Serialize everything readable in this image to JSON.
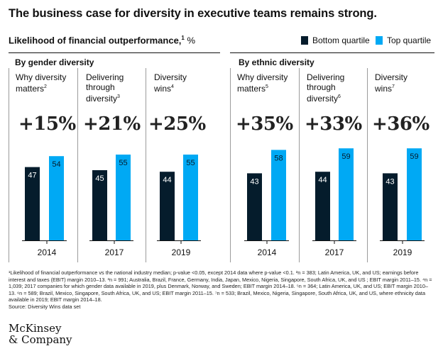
{
  "title": "The business case for diversity in executive teams remains strong.",
  "subtitle": {
    "text": "Likelihood of financial outperformance,",
    "sup": "1",
    "unit": "%"
  },
  "legend": [
    {
      "label": "Bottom quartile",
      "color": "#051c2c"
    },
    {
      "label": "Top quartile",
      "color": "#00a9f4"
    }
  ],
  "colors": {
    "bottom": "#051c2c",
    "top": "#00a9f4",
    "bar_label_dark": "#ffffff",
    "bar_label_light": "#051c2c"
  },
  "chart_data": {
    "type": "bar",
    "title": "Likelihood of financial outperformance, %",
    "ylim": [
      0,
      70
    ],
    "groups": [
      {
        "title": "By gender diversity",
        "studies": [
          {
            "label": "Why diversity matters",
            "sup": "2",
            "diff": "+15%",
            "year": "2014",
            "bottom": 47,
            "top": 54
          },
          {
            "label": "Delivering through diversity",
            "sup": "3",
            "diff": "+21%",
            "year": "2017",
            "bottom": 45,
            "top": 55
          },
          {
            "label": "Diversity wins",
            "sup": "4",
            "diff": "+25%",
            "year": "2019",
            "bottom": 44,
            "top": 55
          }
        ]
      },
      {
        "title": "By ethnic diversity",
        "studies": [
          {
            "label": "Why diversity matters",
            "sup": "5",
            "diff": "+35%",
            "year": "2014",
            "bottom": 43,
            "top": 58
          },
          {
            "label": "Delivering through diversity",
            "sup": "6",
            "diff": "+33%",
            "year": "2017",
            "bottom": 44,
            "top": 59
          },
          {
            "label": "Diversity wins",
            "sup": "7",
            "diff": "+36%",
            "year": "2019",
            "bottom": 43,
            "top": 59
          }
        ]
      }
    ]
  },
  "footnotes": [
    "¹Likelihood of financial outperformance vs the national industry median; p-value <0.05, except 2014 data where p-value <0.1.  ²n = 383; Latin America, UK, and US; earnings before interest and taxes (EBIT) margin 2010–13. ³n = 991; Australia, Brazil, France, Germany, India, Japan, Mexico, Nigeria, Singapore, South Africa, UK, and US ; EBIT margin 2011–15. ⁴n = 1,039; 2017 companies for which gender data available in 2019, plus Denmark, Norway, and Sweden;  EBIT margin 2014–18. ⁵n = 364; Latin America, UK, and US; EBIT margin 2010–13. ⁶n = 589; Brazil, Mexico, Singapore, South Africa, UK, and US; EBIT margin 2011–15. ⁷n = 533; Brazil, Mexico, Nigeria, Singapore, South Africa, UK, and US, where ethnicity data available in 2019; EBIT margin 2014–18.",
    "Source: Diversity Wins data set"
  ],
  "logo": {
    "line1": "McKinsey",
    "line2": "& Company"
  }
}
